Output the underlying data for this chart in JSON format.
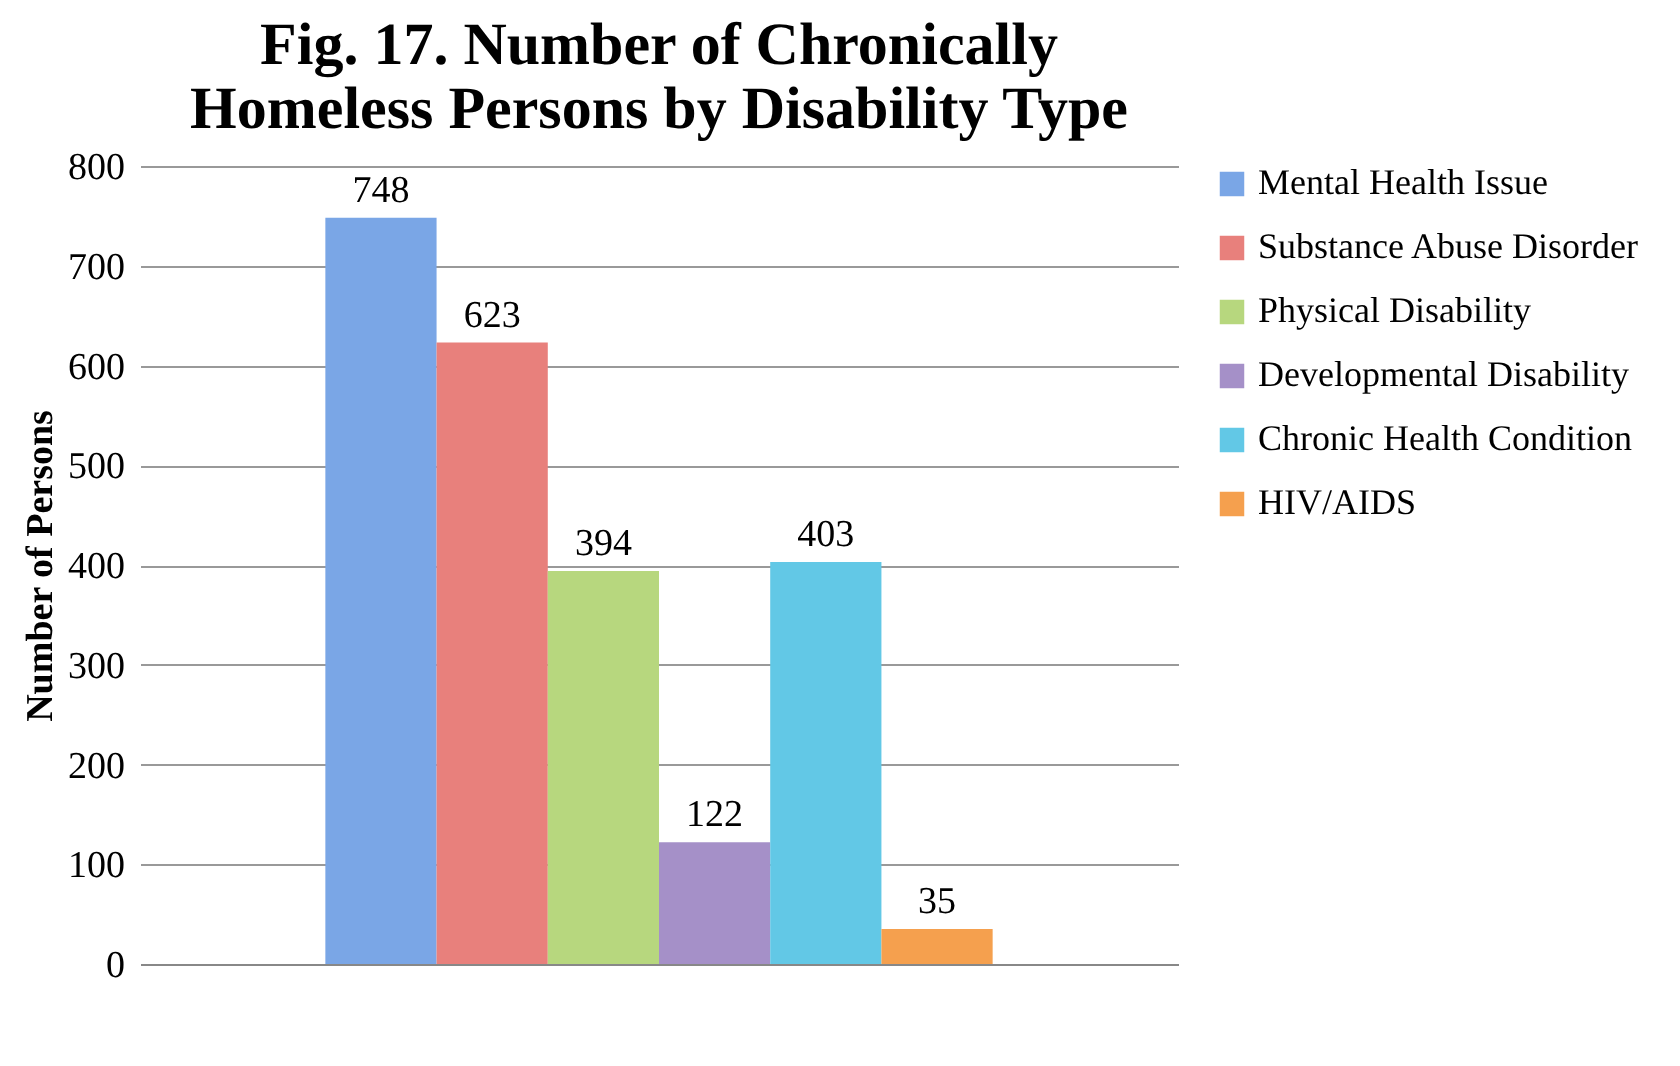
{
  "chart_data": {
    "type": "bar",
    "title": "Fig. 17. Number of Chronically Homeless Persons by Disability Type",
    "ylabel": "Number of Persons",
    "categories": [
      null
    ],
    "series": [
      {
        "name": "Mental Health Issue",
        "color": "#7aa6e6",
        "values": [
          748
        ]
      },
      {
        "name": "Substance Abuse Disorder",
        "color": "#e8807c",
        "values": [
          623
        ]
      },
      {
        "name": "Physical Disability",
        "color": "#b7d77e",
        "values": [
          394
        ]
      },
      {
        "name": "Developmental Disability",
        "color": "#a590c8",
        "values": [
          122
        ]
      },
      {
        "name": "Chronic Health Condition",
        "color": "#62c8e6",
        "values": [
          403
        ]
      },
      {
        "name": "HIV/AIDS",
        "color": "#f5a04e",
        "values": [
          35
        ]
      }
    ],
    "ylim": [
      0,
      800
    ],
    "yticks": [
      0,
      100,
      200,
      300,
      400,
      500,
      600,
      700,
      800
    ],
    "grid": "y",
    "legend": "right",
    "data_labels": true
  }
}
